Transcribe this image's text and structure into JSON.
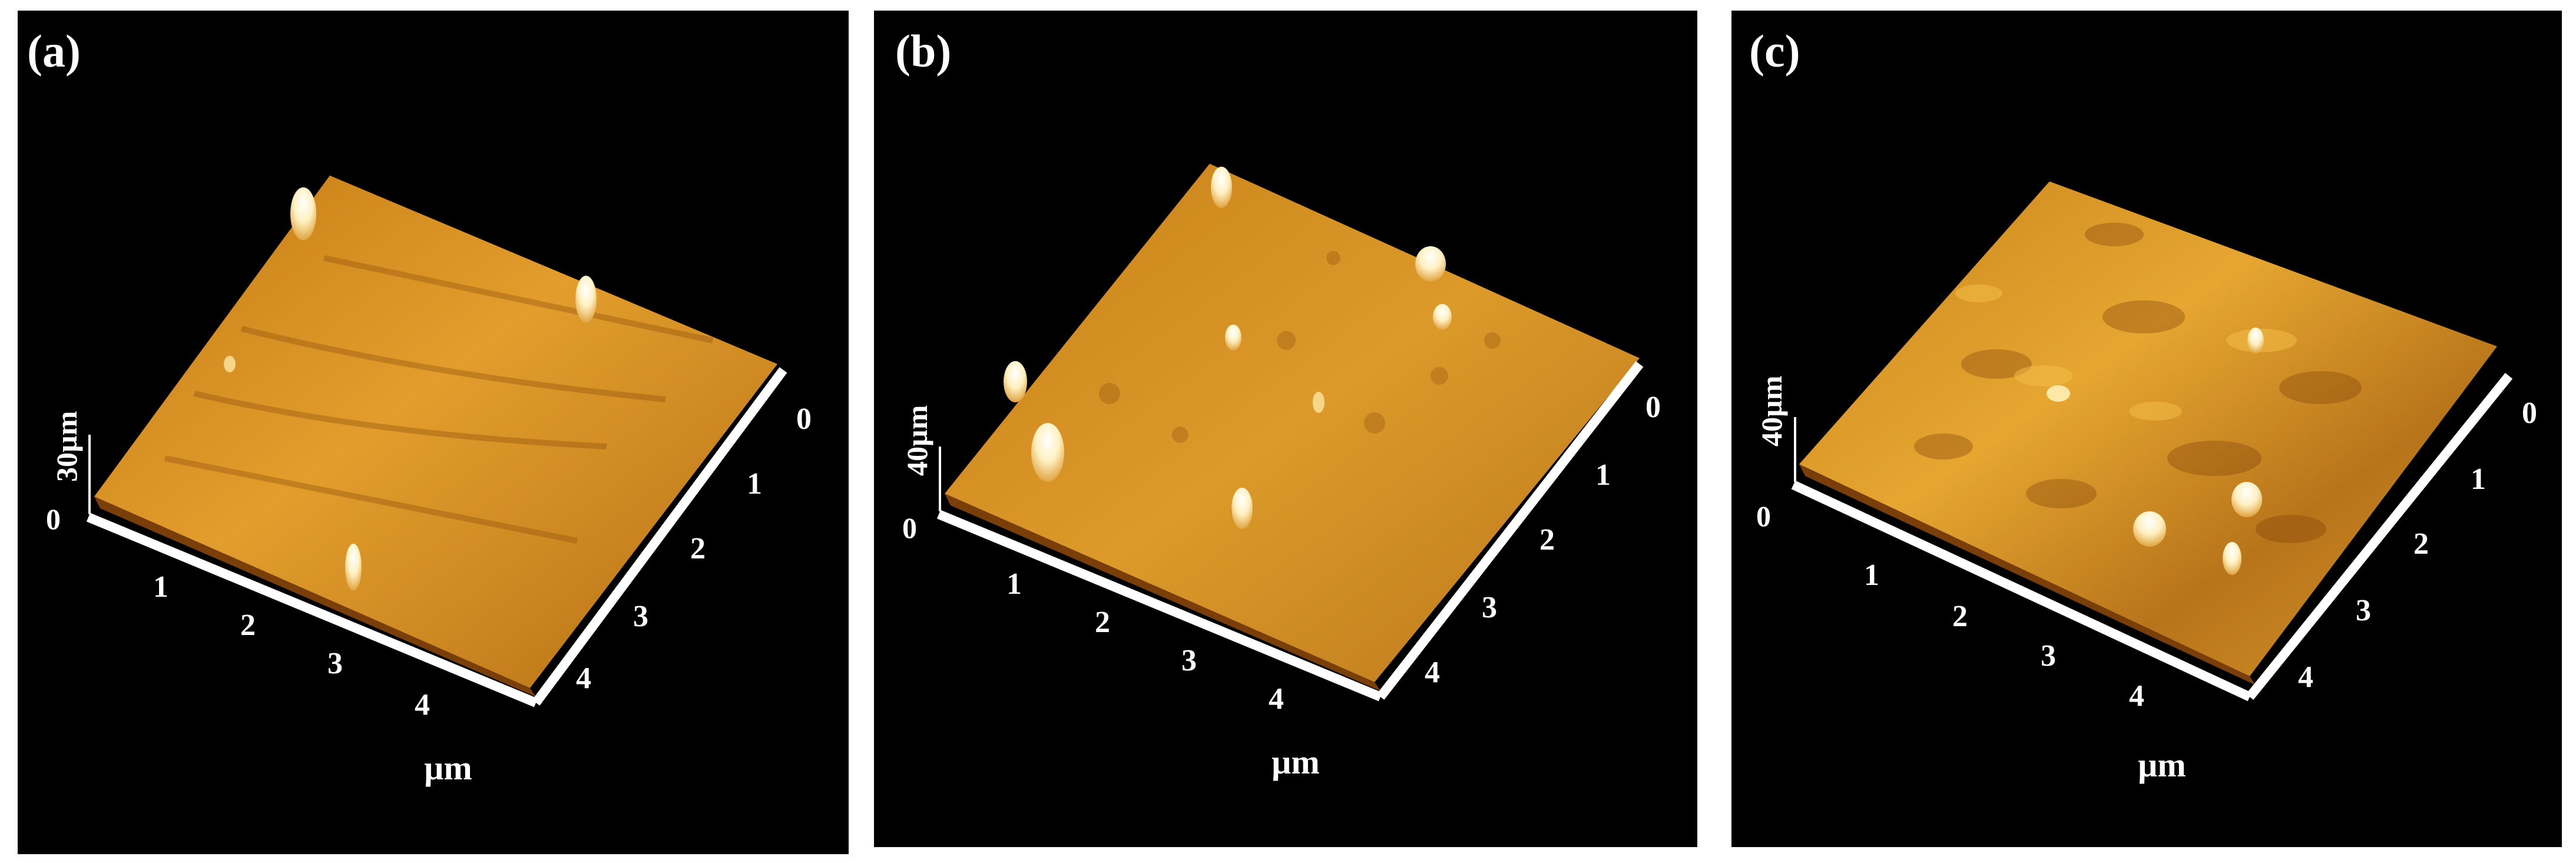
{
  "panels": [
    {
      "label": "(a)",
      "z_label": "30µm",
      "z_zero": "0",
      "x_ticks": [
        "1",
        "2",
        "3",
        "4"
      ],
      "y_ticks": [
        "0",
        "1",
        "2",
        "3",
        "4"
      ],
      "unit": "µm"
    },
    {
      "label": "(b)",
      "z_label": "40µm",
      "z_zero": "0",
      "x_ticks": [
        "1",
        "2",
        "3",
        "4"
      ],
      "y_ticks": [
        "0",
        "1",
        "2",
        "3",
        "4"
      ],
      "unit": "µm"
    },
    {
      "label": "(c)",
      "z_label": "40µm",
      "z_zero": "0",
      "x_ticks": [
        "1",
        "2",
        "3",
        "4"
      ],
      "y_ticks": [
        "0",
        "1",
        "2",
        "3",
        "4"
      ],
      "unit": "µm"
    }
  ],
  "colors": {
    "background": "#000000",
    "surface_light": "#e8a02a",
    "surface_dark": "#8a4a0a",
    "peak": "#fff6d8",
    "axis": "#ffffff"
  }
}
